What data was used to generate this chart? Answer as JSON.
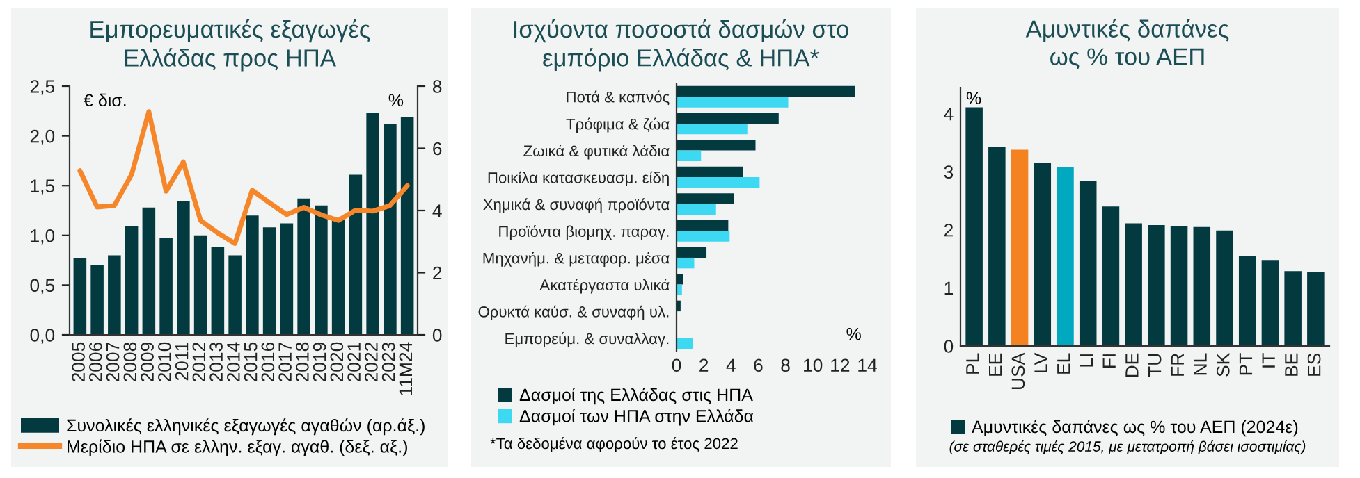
{
  "chart_data": [
    {
      "type": "bar",
      "title": "Εμπορευματικές εξαγωγές\nΕλλάδας προς ΗΠΑ",
      "ylabel": "€ δισ.",
      "y2label": "%",
      "categories": [
        "2005",
        "2006",
        "2007",
        "2008",
        "2009",
        "2010",
        "2011",
        "2012",
        "2013",
        "2014",
        "2015",
        "2016",
        "2017",
        "2018",
        "2019",
        "2020",
        "2021",
        "2022",
        "2023",
        "11M24"
      ],
      "series": [
        {
          "name": "Συνολικές ελληνικές εξαγωγές αγαθών (αρ.άξ.)",
          "type": "bar",
          "color": "#023a40",
          "values": [
            0.77,
            0.7,
            0.8,
            1.09,
            1.28,
            0.97,
            1.34,
            1.0,
            0.88,
            0.8,
            1.2,
            1.08,
            1.12,
            1.37,
            1.3,
            1.17,
            1.61,
            2.23,
            2.12,
            2.19
          ]
        },
        {
          "name": "Μερίδιο ΗΠΑ σε ελλην. εξαγ. αγαθ. (δεξ. αξ.)",
          "type": "line",
          "axis": "y2",
          "color": "#f5862a",
          "values": [
            5.28,
            4.11,
            4.16,
            5.16,
            7.18,
            4.62,
            5.56,
            3.68,
            3.28,
            2.94,
            4.65,
            4.25,
            3.87,
            4.1,
            3.86,
            3.68,
            4.01,
            3.98,
            4.16,
            4.8
          ]
        }
      ],
      "ylim": [
        0,
        2.5
      ],
      "yticks": [
        {
          "value": 0,
          "label": "0,0"
        },
        {
          "value": 0.5,
          "label": "0,5"
        },
        {
          "value": 1.0,
          "label": "1,0"
        },
        {
          "value": 1.5,
          "label": "1,5"
        },
        {
          "value": 2.0,
          "label": "2,0"
        },
        {
          "value": 2.5,
          "label": "2,5"
        }
      ],
      "y2lim": [
        0,
        8
      ],
      "y2ticks": [
        0,
        2,
        4,
        6,
        8
      ],
      "legend": "bottom",
      "grid": false
    },
    {
      "type": "bar",
      "orientation": "horizontal",
      "title": "Ισχύοντα ποσοστά δασμών στο\nεμπόριο Ελλάδας & ΗΠΑ*",
      "xlabel": "%",
      "categories": [
        "Ποτά & καπνός",
        "Τρόφιμα & ζώα",
        "Ζωικά & φυτικά λάδια",
        "Ποικίλα κατασκευασμ. είδη",
        "Χημικά & συναφή προϊόντα",
        "Προϊόντα βιομηχ. παραγ.",
        "Μηχανήμ. & μεταφορ. μέσα",
        "Ακατέργαστα υλικά",
        "Ορυκτά καύσ. & συναφή υλ.",
        "Εμπορεύμ. & συναλλαγ."
      ],
      "series": [
        {
          "name": "Δασμοί της Ελλάδας στις ΗΠΑ",
          "color": "#023a40",
          "values": [
            13.1,
            7.5,
            5.8,
            4.9,
            4.2,
            3.8,
            2.2,
            0.5,
            0.3,
            0
          ]
        },
        {
          "name": "Δασμοί των ΗΠΑ στην Ελλάδα",
          "color": "#3dd8f2",
          "values": [
            8.2,
            5.2,
            1.8,
            6.1,
            2.9,
            3.9,
            1.3,
            0.4,
            0,
            1.2
          ]
        }
      ],
      "xlim": [
        0,
        14
      ],
      "xticks": [
        0,
        2,
        4,
        6,
        8,
        10,
        12,
        14
      ],
      "legend": "bottom",
      "grid": false,
      "annotations": [
        "*Τα δεδομένα αφορούν το έτος 2022"
      ]
    },
    {
      "type": "bar",
      "title": "Αμυντικές δαπάνες\nως % του ΑΕΠ",
      "ylabel": "%",
      "categories": [
        "PL",
        "EE",
        "USA",
        "LV",
        "EL",
        "LI",
        "FI",
        "DE",
        "TU",
        "FR",
        "NL",
        "SK",
        "PT",
        "IT",
        "BE",
        "ES"
      ],
      "series": [
        {
          "name": "Αμυντικές δαπάνες ως % του ΑΕΠ (2024ε)",
          "color": "#023a40",
          "colors": [
            "#023a40",
            "#023a40",
            "#f58220",
            "#023a40",
            "#00a9c0",
            "#023a40",
            "#023a40",
            "#023a40",
            "#023a40",
            "#023a40",
            "#023a40",
            "#023a40",
            "#023a40",
            "#023a40",
            "#023a40",
            "#023a40"
          ],
          "values": [
            4.11,
            3.43,
            3.38,
            3.15,
            3.08,
            2.84,
            2.4,
            2.11,
            2.08,
            2.06,
            2.05,
            1.99,
            1.55,
            1.48,
            1.29,
            1.27
          ]
        }
      ],
      "ylim": [
        0,
        4.45
      ],
      "yticks": [
        0,
        1,
        2,
        3,
        4
      ],
      "legend": "bottom",
      "grid": false,
      "annotations": [
        "(σε σταθερές τιμές 2015, με μετατροπή βάσει ισοστιμίας)"
      ]
    }
  ]
}
